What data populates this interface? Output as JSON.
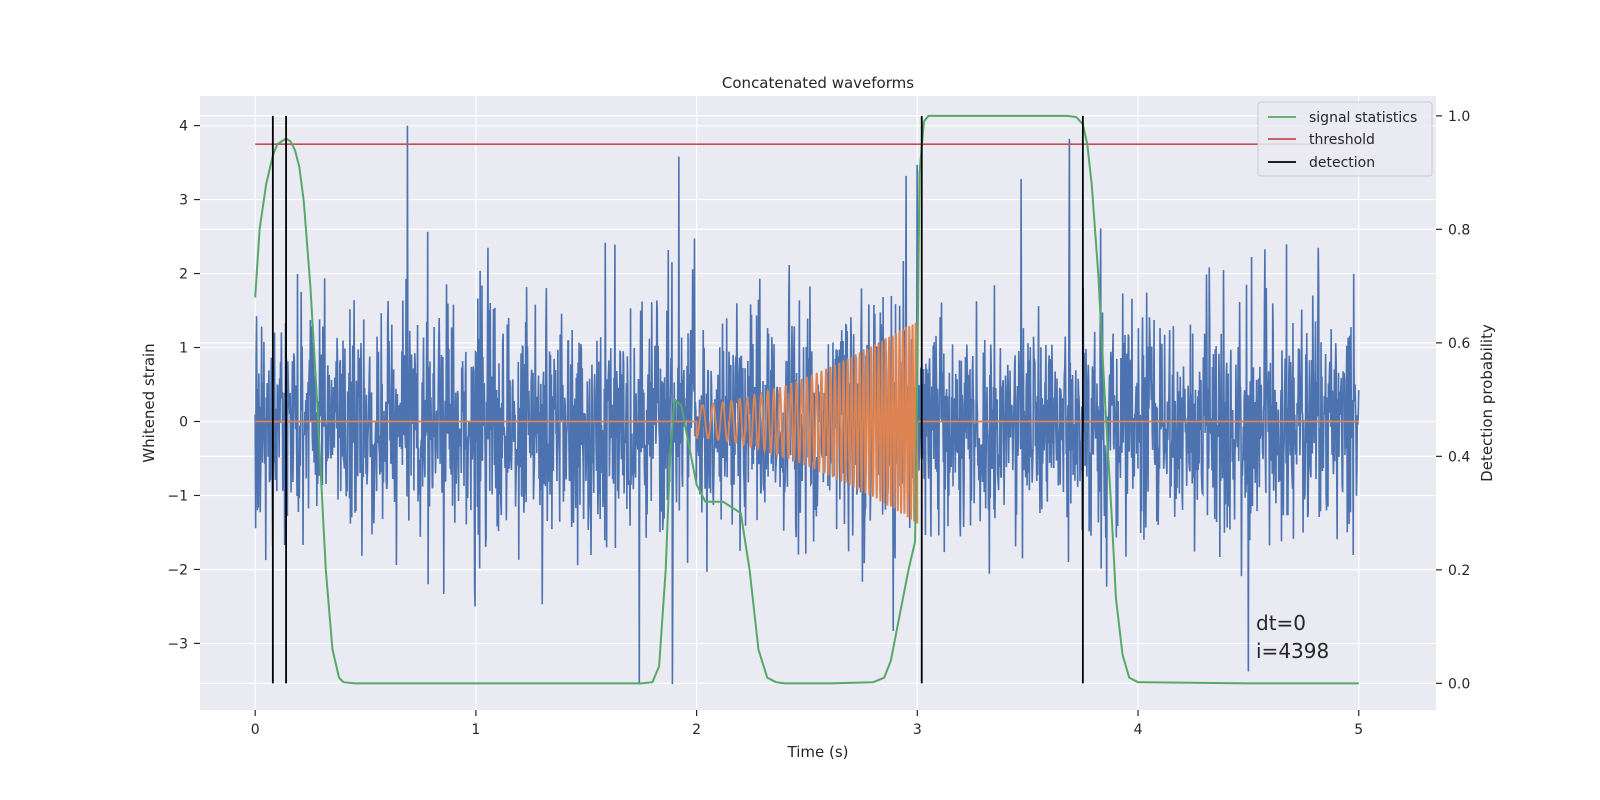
{
  "chart_data": {
    "type": "line",
    "title": "Concatenated waveforms",
    "xlabel": "Time (s)",
    "ylabel": "Whitened strain",
    "y2label": "Detection probability",
    "xlim": [
      -0.25,
      5.35
    ],
    "ylim": [
      -3.9,
      4.4
    ],
    "y2lim": [
      -0.047,
      1.035
    ],
    "xticks": [
      0,
      1,
      2,
      3,
      4,
      5
    ],
    "yticks": [
      -3,
      -2,
      -1,
      0,
      1,
      2,
      3,
      4
    ],
    "y2ticks": [
      0.0,
      0.2,
      0.4,
      0.6,
      0.8,
      1.0
    ],
    "x_tick_labels": [
      "0",
      "1",
      "2",
      "3",
      "4",
      "5"
    ],
    "y_tick_labels": [
      "−3",
      "−2",
      "−1",
      "0",
      "1",
      "2",
      "3",
      "4"
    ],
    "y2_tick_labels": [
      "0.0",
      "0.2",
      "0.4",
      "0.6",
      "0.8",
      "1.0"
    ],
    "grid": true,
    "legend_position": "top-right",
    "colors": {
      "background": "#eaeaf2",
      "strain": "#4c72b0",
      "template": "#dd8452",
      "signal_statistics": "#55a868",
      "threshold": "#c44e52",
      "detection": "#000000"
    },
    "series": [
      {
        "name": "signal statistics",
        "axis": "right",
        "x": [
          0.0,
          0.02,
          0.05,
          0.08,
          0.1,
          0.12,
          0.14,
          0.16,
          0.18,
          0.2,
          0.22,
          0.25,
          0.28,
          0.3,
          0.32,
          0.35,
          0.38,
          0.4,
          0.45,
          0.5,
          1.0,
          1.5,
          1.75,
          1.8,
          1.83,
          1.86,
          1.88,
          1.9,
          1.93,
          1.96,
          2.0,
          2.04,
          2.08,
          2.12,
          2.16,
          2.2,
          2.24,
          2.28,
          2.32,
          2.36,
          2.4,
          2.6,
          2.8,
          2.85,
          2.88,
          2.92,
          2.96,
          2.99,
          3.0,
          3.01,
          3.03,
          3.05,
          3.1,
          3.3,
          3.5,
          3.68,
          3.72,
          3.75,
          3.77,
          3.79,
          3.82,
          3.85,
          3.88,
          3.9,
          3.93,
          3.96,
          4.0,
          4.5,
          5.0
        ],
        "values": [
          0.68,
          0.8,
          0.88,
          0.93,
          0.95,
          0.955,
          0.96,
          0.955,
          0.94,
          0.91,
          0.85,
          0.7,
          0.5,
          0.35,
          0.2,
          0.06,
          0.01,
          0.002,
          0.0,
          0.0,
          0.0,
          0.0,
          0.0,
          0.002,
          0.03,
          0.2,
          0.4,
          0.5,
          0.49,
          0.43,
          0.35,
          0.32,
          0.32,
          0.32,
          0.31,
          0.3,
          0.2,
          0.06,
          0.01,
          0.002,
          0.0,
          0.0,
          0.002,
          0.01,
          0.04,
          0.12,
          0.2,
          0.25,
          0.55,
          0.9,
          0.99,
          1.0,
          1.0,
          1.0,
          1.0,
          1.0,
          0.998,
          0.985,
          0.95,
          0.88,
          0.72,
          0.5,
          0.3,
          0.15,
          0.05,
          0.01,
          0.002,
          0.0,
          0.0
        ]
      },
      {
        "name": "threshold",
        "axis": "right",
        "x": [
          0.0,
          5.05
        ],
        "values": [
          0.95,
          0.95
        ]
      },
      {
        "name": "detection",
        "axis": "right",
        "type": "vlines",
        "x": [
          0.08,
          0.14,
          3.02,
          3.75
        ],
        "ymin": 0.0,
        "ymax": 1.0
      },
      {
        "axis": "left",
        "type": "noise",
        "x_range": [
          0.0,
          5.0
        ],
        "peak_values": [
          4.0,
          3.82,
          3.58,
          3.47,
          3.32,
          3.28,
          -3.55,
          -3.55,
          -3.38,
          -2.83
        ],
        "peak_x": [
          0.69,
          3.69,
          1.92,
          3.0,
          2.95,
          3.47,
          1.74,
          1.89,
          4.5,
          2.89
        ]
      },
      {
        "axis": "left",
        "type": "chirp",
        "x_range": [
          2.0,
          3.0
        ],
        "amplitude_start": 0.22,
        "amplitude_end": 1.38
      }
    ],
    "annotation": {
      "line1": "dt=0",
      "line2": "i=4398"
    }
  }
}
